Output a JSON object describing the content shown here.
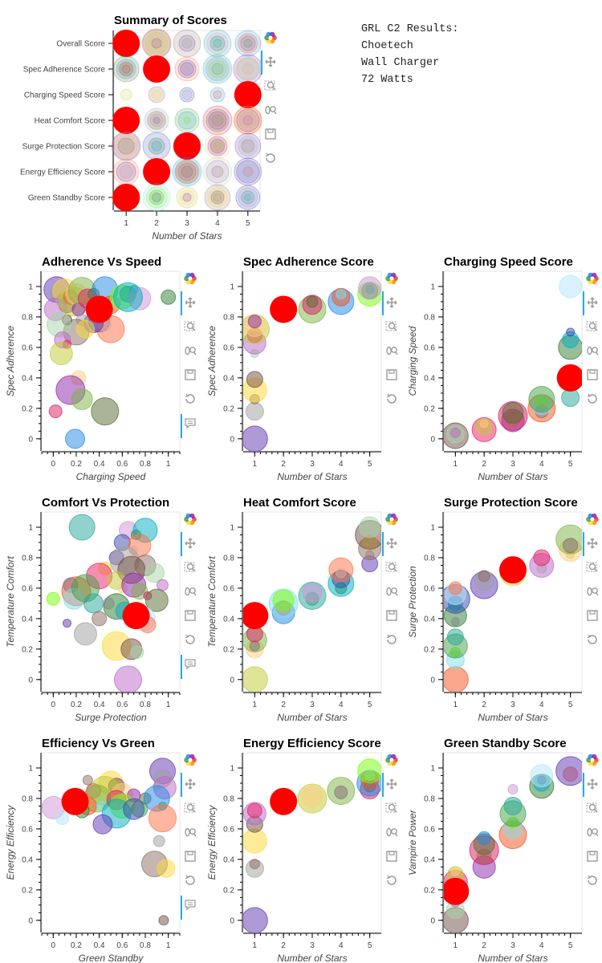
{
  "annotation": {
    "line1": "GRL C2 Results:",
    "line2": "Choetech",
    "line3": "Wall Charger",
    "line4": "72 Watts"
  },
  "colors": {
    "highlight": "#ff0000",
    "toolbar_accent": "#26aae1",
    "frame": "#e5e5e5"
  },
  "toolbar_icons": [
    "bokeh-logo-icon",
    "pan-icon",
    "box-zoom-icon",
    "wheel-zoom-icon",
    "save-icon",
    "reset-icon",
    "hover-icon"
  ],
  "chart_data": [
    {
      "id": "summary",
      "type": "scatter",
      "title": "Summary of Scores",
      "xlabel": "Number of Stars",
      "ylabel": "",
      "categories": [
        "Overall Score",
        "Spec Adherence Score",
        "Charging Speed Score",
        "Heat Comfort Score",
        "Surge Protection Score",
        "Energy Efficiency Score",
        "Green Standby Score"
      ],
      "xticks": [
        "1",
        "2",
        "3",
        "4",
        "5"
      ],
      "xlim": [
        0.6,
        5.4
      ],
      "highlight_stars": [
        1,
        2,
        5,
        1,
        3,
        2,
        1
      ]
    },
    {
      "id": "adh_speed",
      "type": "scatter",
      "title": "Adherence Vs Speed",
      "xlabel": "Charging Speed",
      "ylabel": "Spec Adherence",
      "xlim": [
        -0.1,
        1.1
      ],
      "ylim": [
        -0.08,
        1.1
      ],
      "xticks": [
        "0",
        "0.2",
        "0.4",
        "0.6",
        "0.8",
        "1"
      ],
      "yticks": [
        "0",
        "0.2",
        "0.4",
        "0.6",
        "0.8",
        "1"
      ],
      "highlight": [
        0.4,
        0.85
      ],
      "points": [
        [
          0.03,
          0.98
        ],
        [
          0.05,
          0.95
        ],
        [
          0.08,
          0.92
        ],
        [
          0.1,
          0.97
        ],
        [
          0.12,
          0.88
        ],
        [
          0.06,
          0.9
        ],
        [
          0.02,
          0.85
        ],
        [
          0.15,
          0.93
        ],
        [
          0.18,
          0.9
        ],
        [
          0.2,
          0.95
        ],
        [
          0.22,
          0.85
        ],
        [
          0.25,
          0.97
        ],
        [
          0.3,
          0.92
        ],
        [
          0.35,
          0.95
        ],
        [
          0.45,
          0.98
        ],
        [
          0.5,
          0.88
        ],
        [
          0.55,
          0.9
        ],
        [
          0.6,
          0.93
        ],
        [
          0.65,
          0.95
        ],
        [
          0.7,
          0.98
        ],
        [
          0.75,
          0.92
        ],
        [
          1.0,
          0.93
        ],
        [
          0.65,
          0.93
        ],
        [
          0.4,
          0.77
        ],
        [
          0.45,
          0.75
        ],
        [
          0.5,
          0.72
        ],
        [
          0.35,
          0.76
        ],
        [
          0.25,
          0.78
        ],
        [
          0.2,
          0.7
        ],
        [
          0.28,
          0.72
        ],
        [
          0.12,
          0.78
        ],
        [
          0.05,
          0.75
        ],
        [
          0.08,
          0.65
        ],
        [
          0.12,
          0.62
        ],
        [
          0.07,
          0.56
        ],
        [
          0.22,
          0.4
        ],
        [
          0.15,
          0.32
        ],
        [
          0.25,
          0.26
        ],
        [
          0.02,
          0.18
        ],
        [
          0.45,
          0.18
        ],
        [
          0.19,
          0.0
        ]
      ]
    },
    {
      "id": "adh_score",
      "type": "scatter",
      "title": "Spec Adherence Score",
      "xlabel": "Number of Stars",
      "ylabel": "Spec Adherence",
      "xlim": [
        0.6,
        5.4
      ],
      "ylim": [
        -0.08,
        1.1
      ],
      "xticks": [
        "1",
        "2",
        "3",
        "4",
        "5"
      ],
      "yticks": [
        "0",
        "0.2",
        "0.4",
        "0.6",
        "0.8",
        "1"
      ],
      "highlight": [
        2,
        0.85
      ],
      "points": [
        [
          1,
          0.0
        ],
        [
          1,
          0.18
        ],
        [
          1,
          0.26
        ],
        [
          1,
          0.32
        ],
        [
          1,
          0.39
        ],
        [
          1,
          0.56
        ],
        [
          1,
          0.63
        ],
        [
          1,
          0.68
        ],
        [
          1,
          0.72
        ],
        [
          1,
          0.74
        ],
        [
          1,
          0.77
        ],
        [
          3,
          0.85
        ],
        [
          3,
          0.88
        ],
        [
          3,
          0.9
        ],
        [
          4,
          0.9
        ],
        [
          4,
          0.93
        ],
        [
          4,
          0.95
        ],
        [
          5,
          0.95
        ],
        [
          5,
          0.97
        ],
        [
          5,
          0.98
        ],
        [
          5,
          0.99
        ]
      ]
    },
    {
      "id": "speed_score",
      "type": "scatter",
      "title": "Charging Speed Score",
      "xlabel": "Number of Stars",
      "ylabel": "Charging Speed",
      "xlim": [
        0.6,
        5.4
      ],
      "ylim": [
        -0.08,
        1.1
      ],
      "xticks": [
        "1",
        "2",
        "3",
        "4",
        "5"
      ],
      "yticks": [
        "0",
        "0.2",
        "0.4",
        "0.6",
        "0.8",
        "1"
      ],
      "highlight": [
        5,
        0.4
      ],
      "points": [
        [
          1,
          0.02
        ],
        [
          1,
          0.03
        ],
        [
          1,
          0.04
        ],
        [
          2,
          0.06
        ],
        [
          2,
          0.08
        ],
        [
          2,
          0.1
        ],
        [
          3,
          0.12
        ],
        [
          3,
          0.13
        ],
        [
          3,
          0.15
        ],
        [
          3,
          0.17
        ],
        [
          4,
          0.18
        ],
        [
          4,
          0.2
        ],
        [
          4,
          0.22
        ],
        [
          4,
          0.25
        ],
        [
          4,
          0.26
        ],
        [
          5,
          0.27
        ],
        [
          5,
          0.45
        ],
        [
          5,
          0.6
        ],
        [
          5,
          0.65
        ],
        [
          5,
          0.7
        ],
        [
          5,
          1.0
        ]
      ]
    },
    {
      "id": "comfort_prot",
      "type": "scatter",
      "title": "Comfort Vs Protection",
      "xlabel": "Surge Protection",
      "ylabel": "Temperature Comfort",
      "xlim": [
        -0.1,
        1.1
      ],
      "ylim": [
        -0.08,
        1.1
      ],
      "xticks": [
        "0",
        "0.2",
        "0.4",
        "0.6",
        "0.8",
        "1"
      ],
      "yticks": [
        "0",
        "0.2",
        "0.4",
        "0.6",
        "0.8",
        "1"
      ],
      "highlight": [
        0.72,
        0.42
      ],
      "points": [
        [
          0.25,
          1.0
        ],
        [
          0.65,
          0.98
        ],
        [
          0.72,
          0.95
        ],
        [
          0.8,
          0.98
        ],
        [
          0.6,
          0.9
        ],
        [
          0.7,
          0.85
        ],
        [
          0.75,
          0.88
        ],
        [
          0.55,
          0.8
        ],
        [
          0.62,
          0.78
        ],
        [
          0.8,
          0.75
        ],
        [
          0.45,
          0.73
        ],
        [
          0.68,
          0.72
        ],
        [
          0.88,
          0.7
        ],
        [
          0.95,
          0.62
        ],
        [
          0.4,
          0.68
        ],
        [
          0.55,
          0.65
        ],
        [
          0.6,
          0.6
        ],
        [
          0.7,
          0.62
        ],
        [
          0.75,
          0.58
        ],
        [
          0.82,
          0.55
        ],
        [
          0.9,
          0.52
        ],
        [
          0.15,
          0.62
        ],
        [
          0.2,
          0.58
        ],
        [
          0.18,
          0.53
        ],
        [
          0.0,
          0.53
        ],
        [
          0.28,
          0.6
        ],
        [
          0.35,
          0.5
        ],
        [
          0.48,
          0.5
        ],
        [
          0.55,
          0.48
        ],
        [
          0.62,
          0.45
        ],
        [
          0.66,
          0.4
        ],
        [
          0.78,
          0.4
        ],
        [
          0.82,
          0.36
        ],
        [
          0.12,
          0.37
        ],
        [
          0.28,
          0.3
        ],
        [
          0.4,
          0.4
        ],
        [
          0.55,
          0.22
        ],
        [
          0.68,
          0.2
        ],
        [
          0.73,
          0.18
        ],
        [
          0.65,
          0.0
        ]
      ]
    },
    {
      "id": "comfort_score",
      "type": "scatter",
      "title": "Heat Comfort Score",
      "xlabel": "Number of Stars",
      "ylabel": "Temperature Comfort",
      "xlim": [
        0.6,
        5.4
      ],
      "ylim": [
        -0.08,
        1.1
      ],
      "xticks": [
        "1",
        "2",
        "3",
        "4",
        "5"
      ],
      "yticks": [
        "0",
        "0.2",
        "0.4",
        "0.6",
        "0.8",
        "1"
      ],
      "highlight": [
        1,
        0.42
      ],
      "points": [
        [
          1,
          0.0
        ],
        [
          1,
          0.2
        ],
        [
          1,
          0.22
        ],
        [
          1,
          0.26
        ],
        [
          1,
          0.3
        ],
        [
          1,
          0.38
        ],
        [
          2,
          0.44
        ],
        [
          2,
          0.47
        ],
        [
          2,
          0.5
        ],
        [
          2,
          0.52
        ],
        [
          3,
          0.53
        ],
        [
          3,
          0.55
        ],
        [
          3,
          0.57
        ],
        [
          4,
          0.6
        ],
        [
          4,
          0.63
        ],
        [
          4,
          0.66
        ],
        [
          4,
          0.7
        ],
        [
          4,
          0.72
        ],
        [
          5,
          0.76
        ],
        [
          5,
          0.82
        ],
        [
          5,
          0.86
        ],
        [
          5,
          0.9
        ],
        [
          5,
          0.95
        ],
        [
          5,
          1.0
        ]
      ]
    },
    {
      "id": "prot_score",
      "type": "scatter",
      "title": "Surge Protection Score",
      "xlabel": "Number of Stars",
      "ylabel": "Surge Protection",
      "xlim": [
        0.6,
        5.4
      ],
      "ylim": [
        -0.08,
        1.1
      ],
      "xticks": [
        "1",
        "2",
        "3",
        "4",
        "5"
      ],
      "yticks": [
        "0",
        "0.2",
        "0.4",
        "0.6",
        "0.8",
        "1"
      ],
      "highlight": [
        3,
        0.72
      ],
      "points": [
        [
          1,
          0.0
        ],
        [
          1,
          0.13
        ],
        [
          1,
          0.18
        ],
        [
          1,
          0.22
        ],
        [
          1,
          0.28
        ],
        [
          1,
          0.38
        ],
        [
          1,
          0.42
        ],
        [
          1,
          0.5
        ],
        [
          1,
          0.53
        ],
        [
          1,
          0.56
        ],
        [
          1,
          0.6
        ],
        [
          2,
          0.62
        ],
        [
          2,
          0.65
        ],
        [
          2,
          0.68
        ],
        [
          3,
          0.7
        ],
        [
          3,
          0.73
        ],
        [
          4,
          0.73
        ],
        [
          4,
          0.75
        ],
        [
          4,
          0.8
        ],
        [
          5,
          0.82
        ],
        [
          5,
          0.85
        ],
        [
          5,
          0.88
        ],
        [
          5,
          0.92
        ]
      ]
    },
    {
      "id": "eff_green",
      "type": "scatter",
      "title": "Efficiency Vs Green",
      "xlabel": "Green Standby",
      "ylabel": "Energy Efficiency",
      "xlim": [
        -0.1,
        1.1
      ],
      "ylim": [
        -0.08,
        1.1
      ],
      "xticks": [
        "0",
        "0.2",
        "0.4",
        "0.6",
        "0.8",
        "1"
      ],
      "yticks": [
        "0",
        "0.2",
        "0.4",
        "0.6",
        "0.8",
        "1"
      ],
      "highlight": [
        0.19,
        0.78
      ],
      "points": [
        [
          0.95,
          0.98
        ],
        [
          0.95,
          0.93
        ],
        [
          0.3,
          0.92
        ],
        [
          0.5,
          0.9
        ],
        [
          0.55,
          0.88
        ],
        [
          0.9,
          0.88
        ],
        [
          0.97,
          0.87
        ],
        [
          0.35,
          0.85
        ],
        [
          0.45,
          0.85
        ],
        [
          0.6,
          0.83
        ],
        [
          0.7,
          0.82
        ],
        [
          0.38,
          0.8
        ],
        [
          0.55,
          0.79
        ],
        [
          0.8,
          0.8
        ],
        [
          0.9,
          0.8
        ],
        [
          0.3,
          0.75
        ],
        [
          0.42,
          0.75
        ],
        [
          0.6,
          0.75
        ],
        [
          0.75,
          0.73
        ],
        [
          0.95,
          0.75
        ],
        [
          0.0,
          0.74
        ],
        [
          0.25,
          0.72
        ],
        [
          0.55,
          0.7
        ],
        [
          0.7,
          0.73
        ],
        [
          0.08,
          0.67
        ],
        [
          0.95,
          0.67
        ],
        [
          0.43,
          0.63
        ],
        [
          0.92,
          0.52
        ],
        [
          0.88,
          0.37
        ],
        [
          0.98,
          0.34
        ],
        [
          0.96,
          0.0
        ]
      ]
    },
    {
      "id": "eff_score",
      "type": "scatter",
      "title": "Energy Efficiency Score",
      "xlabel": "Number of Stars",
      "ylabel": "Energy Efficiency",
      "xlim": [
        0.6,
        5.4
      ],
      "ylim": [
        -0.08,
        1.1
      ],
      "xticks": [
        "1",
        "2",
        "3",
        "4",
        "5"
      ],
      "yticks": [
        "0",
        "0.2",
        "0.4",
        "0.6",
        "0.8",
        "1"
      ],
      "highlight": [
        2,
        0.78
      ],
      "points": [
        [
          1,
          0.0
        ],
        [
          1,
          0.34
        ],
        [
          1,
          0.37
        ],
        [
          1,
          0.52
        ],
        [
          1,
          0.63
        ],
        [
          1,
          0.67
        ],
        [
          1,
          0.7
        ],
        [
          1,
          0.72
        ],
        [
          3,
          0.8
        ],
        [
          3,
          0.81
        ],
        [
          4,
          0.84
        ],
        [
          4,
          0.85
        ],
        [
          5,
          0.86
        ],
        [
          5,
          0.88
        ],
        [
          5,
          0.9
        ],
        [
          5,
          0.92
        ],
        [
          5,
          0.95
        ],
        [
          5,
          0.98
        ]
      ]
    },
    {
      "id": "green_score",
      "type": "scatter",
      "title": "Green Standby Score",
      "xlabel": "Number of Stars",
      "ylabel": "Vampire Power",
      "xlim": [
        0.6,
        5.4
      ],
      "ylim": [
        -0.08,
        1.1
      ],
      "xticks": [
        "1",
        "2",
        "3",
        "4",
        "5"
      ],
      "yticks": [
        "0",
        "0.2",
        "0.4",
        "0.6",
        "0.8",
        "1"
      ],
      "highlight": [
        1,
        0.19
      ],
      "points": [
        [
          1,
          0.0
        ],
        [
          1,
          0.07
        ],
        [
          1,
          0.12
        ],
        [
          1,
          0.25
        ],
        [
          1,
          0.3
        ],
        [
          1,
          0.32
        ],
        [
          2,
          0.35
        ],
        [
          2,
          0.42
        ],
        [
          2,
          0.46
        ],
        [
          2,
          0.5
        ],
        [
          2,
          0.54
        ],
        [
          3,
          0.56
        ],
        [
          3,
          0.6
        ],
        [
          3,
          0.64
        ],
        [
          3,
          0.7
        ],
        [
          3,
          0.75
        ],
        [
          3,
          0.86
        ],
        [
          4,
          0.88
        ],
        [
          4,
          0.9
        ],
        [
          4,
          0.92
        ],
        [
          4,
          0.95
        ],
        [
          5,
          0.96
        ],
        [
          5,
          0.98
        ]
      ]
    }
  ]
}
